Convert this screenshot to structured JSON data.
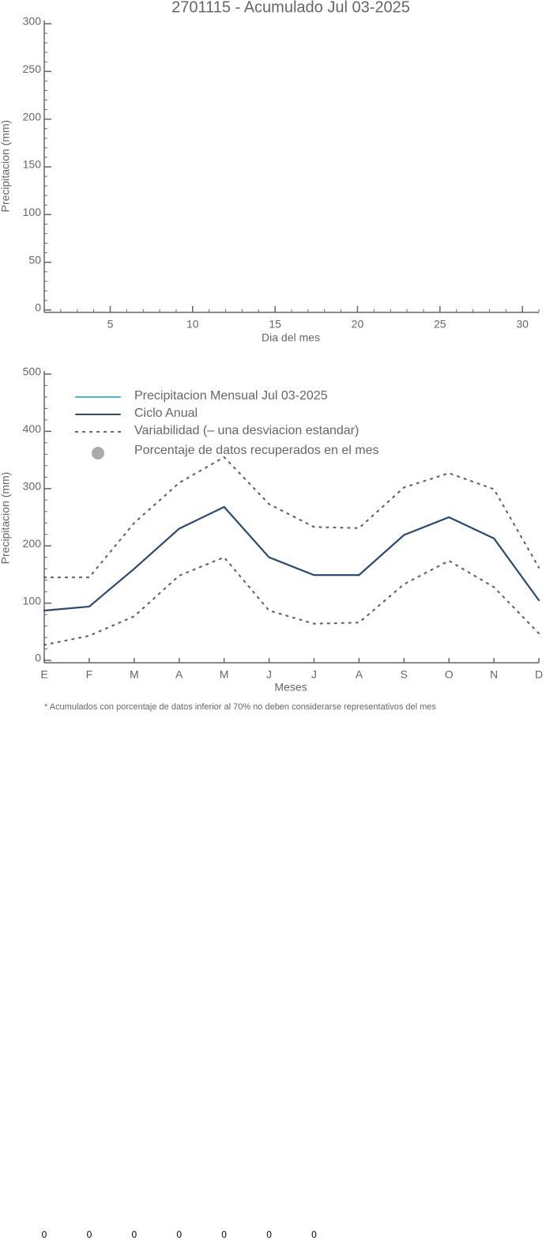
{
  "chart_data": [
    {
      "type": "line",
      "title": "2701115 - Acumulado Jul 03-2025",
      "xlabel": "Dia del mes",
      "ylabel": "Precipitacion (mm)",
      "xlim": [
        1,
        31
      ],
      "xticks": [
        5,
        10,
        15,
        20,
        25,
        30
      ],
      "xminor_step": 1,
      "ylim": [
        0,
        300
      ],
      "yticks": [
        0,
        50,
        100,
        150,
        200,
        250,
        300
      ],
      "yminor_step": 10,
      "series": []
    },
    {
      "type": "line",
      "xlabel": "Meses",
      "ylabel": "Precipitacion (mm)",
      "categories": [
        "E",
        "F",
        "M",
        "A",
        "M",
        "J",
        "J",
        "A",
        "S",
        "O",
        "N",
        "D"
      ],
      "ylim": [
        0,
        500
      ],
      "yticks": [
        0,
        100,
        200,
        300,
        400,
        500
      ],
      "yminor_step": 20,
      "series": [
        {
          "name": "Precipitacion Mensual Jul 03-2025",
          "color": "#4ab8cc",
          "values": [
            null,
            null,
            null,
            null,
            null,
            null,
            null,
            null,
            null,
            null,
            null,
            null
          ]
        },
        {
          "name": "Ciclo Anual",
          "color": "#2c4a6b",
          "values": [
            87,
            94,
            160,
            230,
            268,
            180,
            149,
            149,
            219,
            250,
            213,
            105
          ]
        },
        {
          "name": "Variabilidad (– una desviacion estandar)",
          "color": "#666666",
          "style": "dotted",
          "upper": [
            145,
            145,
            240,
            310,
            355,
            273,
            233,
            231,
            302,
            327,
            299,
            162
          ],
          "lower": [
            27,
            43,
            77,
            148,
            180,
            87,
            64,
            66,
            133,
            174,
            128,
            47
          ]
        }
      ],
      "legend_extra": {
        "name": "Porcentaje de datos recuperados en el mes",
        "color": "#aaaaaa"
      },
      "footnote": "* Acumulados con porcentaje de datos inferior al 70% no deben considerarse representativos del mes",
      "percent_labels": [
        0,
        0,
        0,
        0,
        0,
        0,
        0,
        null,
        null,
        null,
        null,
        null
      ]
    }
  ]
}
